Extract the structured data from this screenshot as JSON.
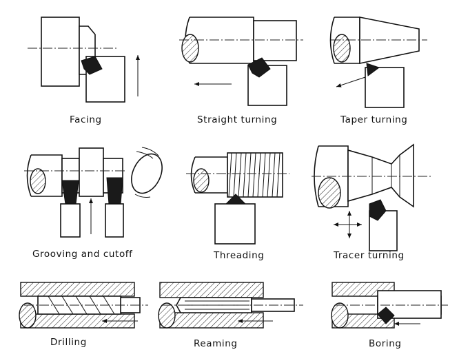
{
  "panels": [
    {
      "caption": "Facing"
    },
    {
      "caption": "Straight turning"
    },
    {
      "caption": "Taper turning"
    },
    {
      "caption": "Grooving and cutoff"
    },
    {
      "caption": "Threading"
    },
    {
      "caption": "Tracer turning"
    },
    {
      "caption": "Drilling"
    },
    {
      "caption": "Reaming"
    },
    {
      "caption": "Boring"
    }
  ]
}
